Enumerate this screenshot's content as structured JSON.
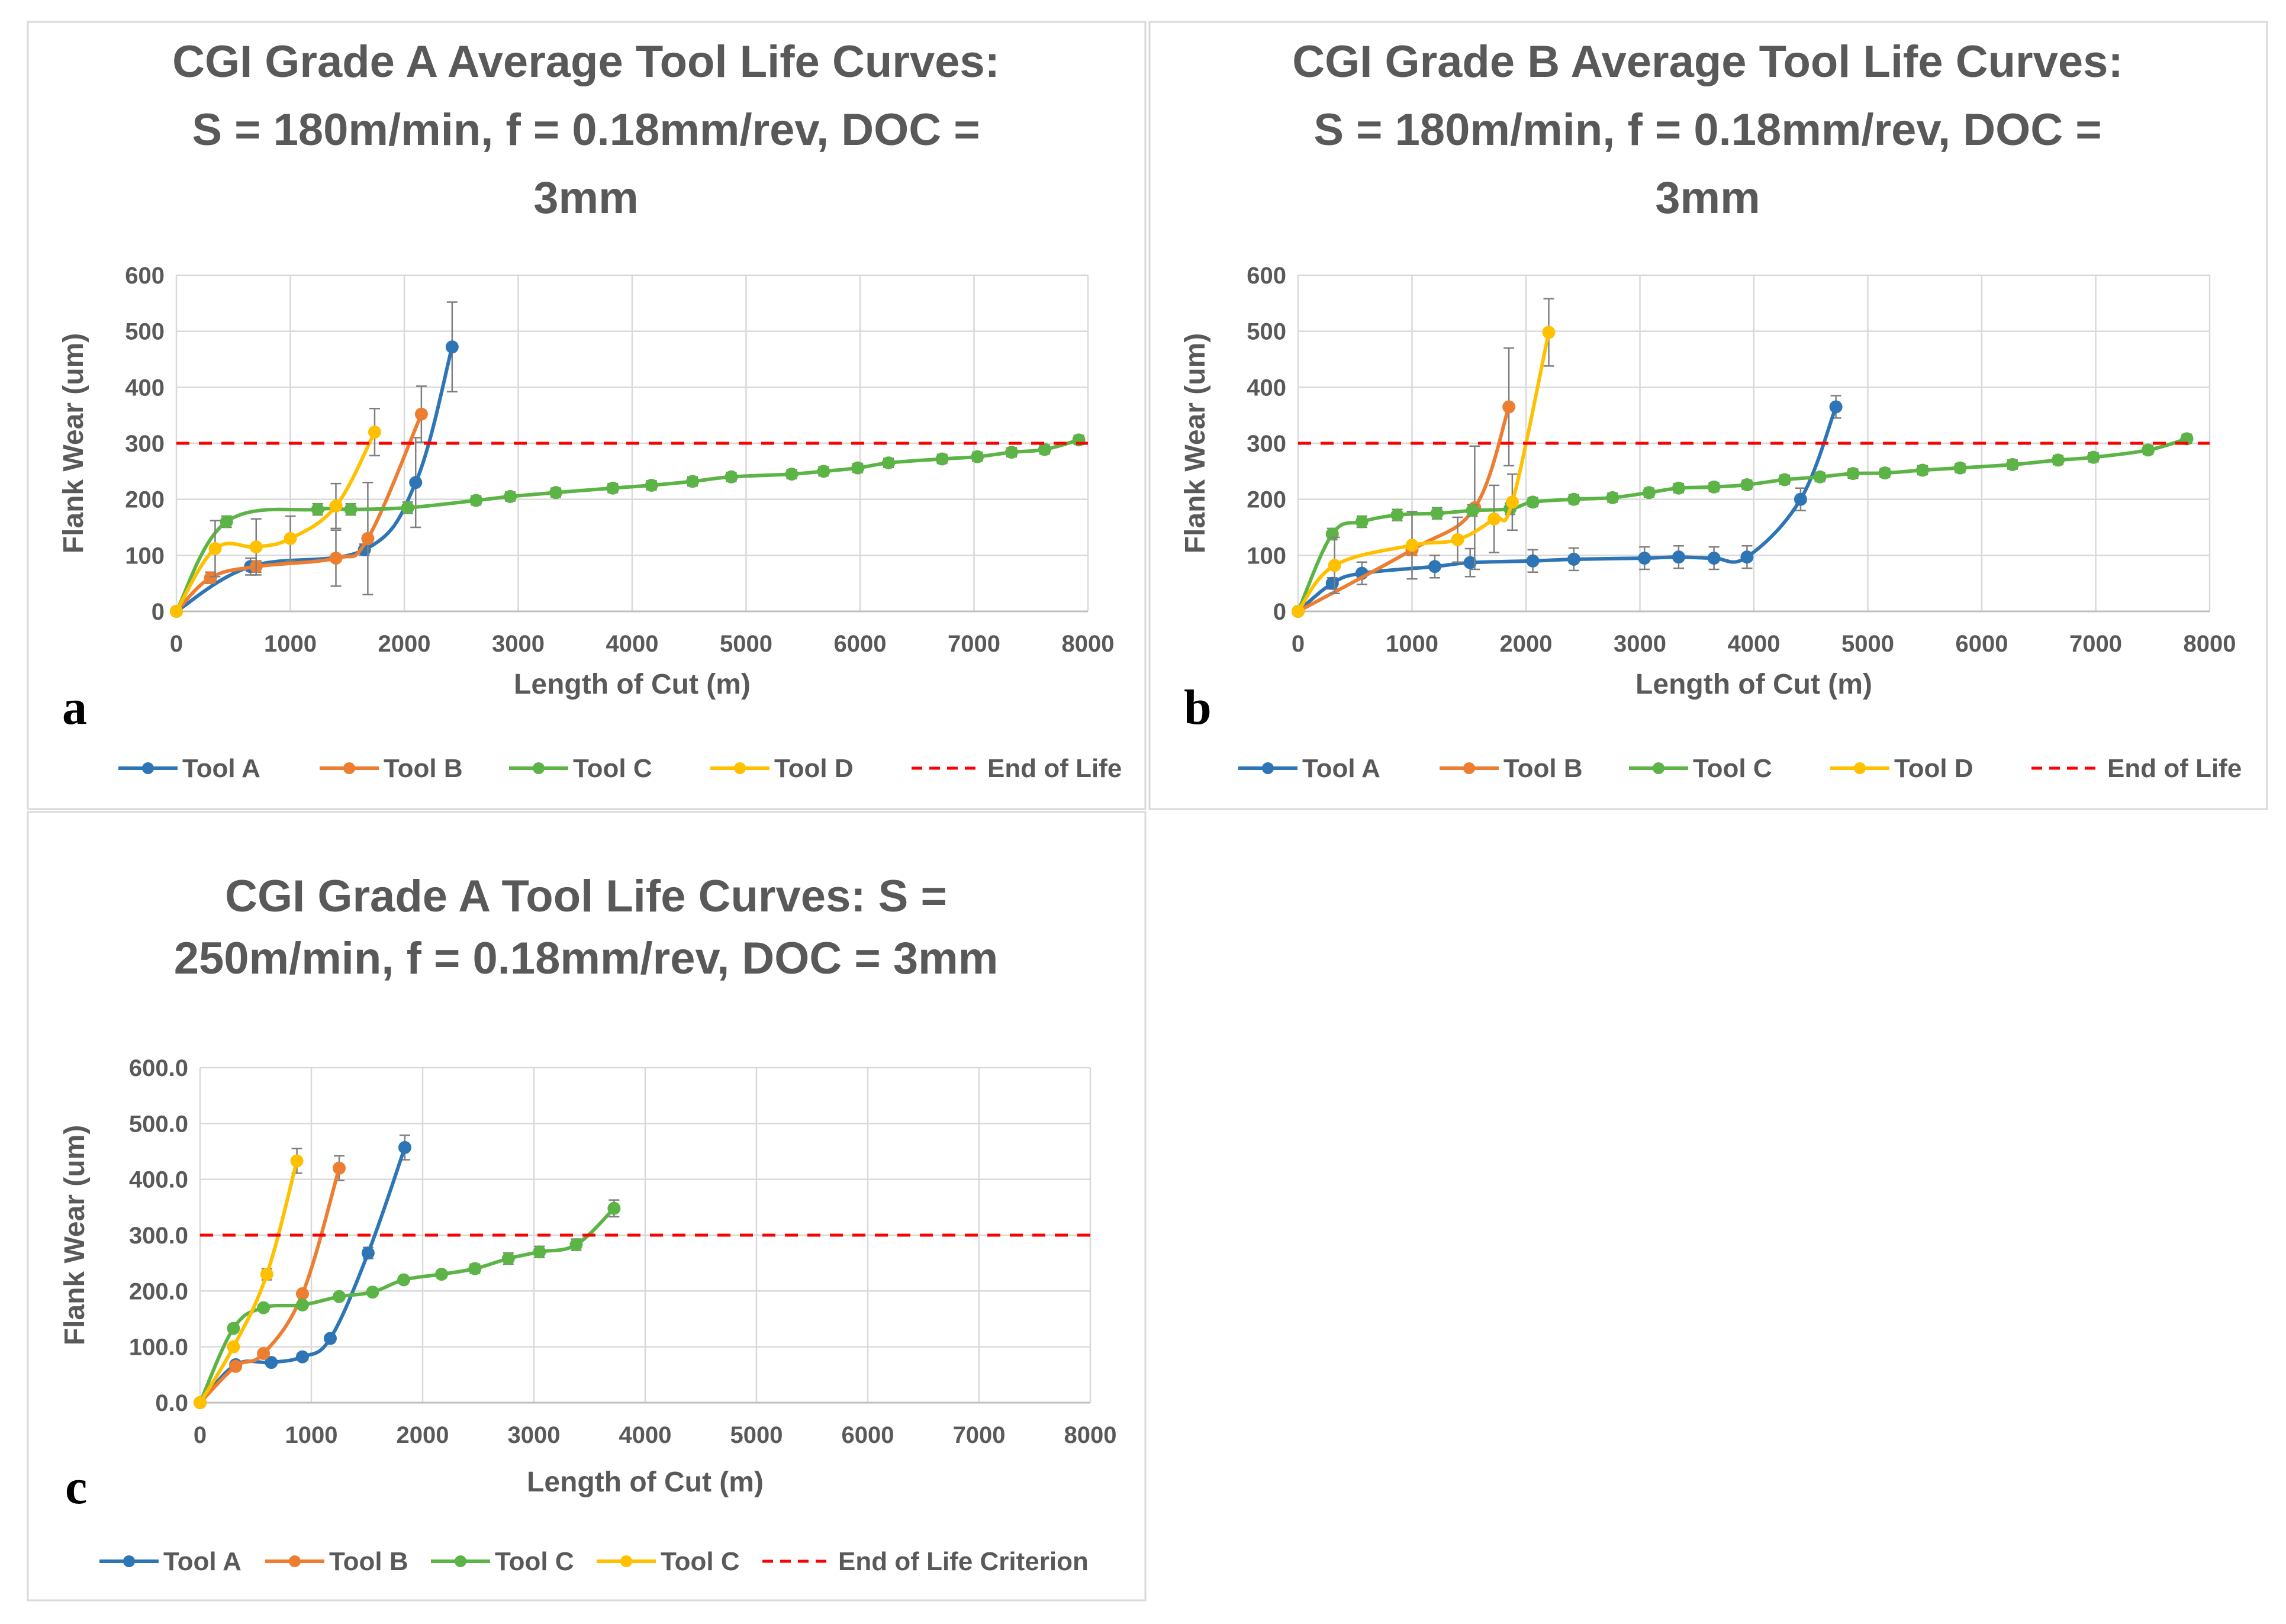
{
  "chart_data": [
    {
      "type": "line",
      "panel_label": "a",
      "title_lines": [
        "CGI Grade A Average Tool Life Curves:",
        "S = 180m/min, f = 0.18mm/rev, DOC =",
        "3mm"
      ],
      "xlabel": "Length of Cut (m)",
      "ylabel": "Flank Wear (um)",
      "xlim": [
        0,
        8000
      ],
      "ylim": [
        0,
        600
      ],
      "xticks": [
        "0",
        "1000",
        "2000",
        "3000",
        "4000",
        "5000",
        "6000",
        "7000",
        "8000"
      ],
      "yticks": [
        "0",
        "100",
        "200",
        "300",
        "400",
        "500",
        "600"
      ],
      "grid": true,
      "legend_position": "bottom",
      "series": [
        {
          "name": "Tool A",
          "color": "#2E75B6",
          "points": [
            [
              0,
              0
            ],
            [
              650,
              80
            ],
            [
              1650,
              110
            ],
            [
              2100,
              230
            ],
            [
              2420,
              472
            ]
          ],
          "errors": [
            0,
            15,
            10,
            80,
            80
          ]
        },
        {
          "name": "Tool B",
          "color": "#ED7D31",
          "points": [
            [
              0,
              0
            ],
            [
              300,
              60
            ],
            [
              700,
              80
            ],
            [
              1400,
              95
            ],
            [
              1680,
              130
            ],
            [
              2150,
              352
            ]
          ],
          "errors": [
            0,
            10,
            10,
            50,
            100,
            50
          ]
        },
        {
          "name": "Tool C",
          "color": "#5DB446",
          "points": [
            [
              0,
              0
            ],
            [
              440,
              160
            ],
            [
              1240,
              182
            ],
            [
              1530,
              182
            ],
            [
              2030,
              185
            ],
            [
              2630,
              198
            ],
            [
              2930,
              205
            ],
            [
              3330,
              212
            ],
            [
              3830,
              220
            ],
            [
              4170,
              225
            ],
            [
              4530,
              232
            ],
            [
              4870,
              240
            ],
            [
              5400,
              245
            ],
            [
              5680,
              250
            ],
            [
              5980,
              256
            ],
            [
              6250,
              265
            ],
            [
              6720,
              272
            ],
            [
              7030,
              276
            ],
            [
              7330,
              284
            ],
            [
              7620,
              289
            ],
            [
              7920,
              306
            ]
          ],
          "errors": [
            0,
            10,
            10,
            10,
            10,
            8,
            8,
            8,
            8,
            8,
            8,
            8,
            8,
            8,
            8,
            8,
            8,
            8,
            8,
            8,
            8
          ]
        },
        {
          "name": "Tool D",
          "color": "#FFC000",
          "points": [
            [
              0,
              0
            ],
            [
              340,
              112
            ],
            [
              700,
              115
            ],
            [
              1000,
              130
            ],
            [
              1400,
              188
            ],
            [
              1740,
              320
            ]
          ],
          "errors": [
            0,
            50,
            50,
            40,
            40,
            42
          ]
        },
        {
          "name": "End of Life",
          "color": "#FF0000",
          "dashed": true,
          "points": [
            [
              0,
              300
            ],
            [
              8000,
              300
            ]
          ]
        }
      ]
    },
    {
      "type": "line",
      "panel_label": "b",
      "title_lines": [
        "CGI Grade B Average Tool Life Curves:",
        "S = 180m/min, f = 0.18mm/rev, DOC =",
        "3mm"
      ],
      "xlabel": "Length of Cut (m)",
      "ylabel": "Flank Wear (um)",
      "xlim": [
        0,
        8000
      ],
      "ylim": [
        0,
        600
      ],
      "xticks": [
        "0",
        "1000",
        "2000",
        "3000",
        "4000",
        "5000",
        "6000",
        "7000",
        "8000"
      ],
      "yticks": [
        "0",
        "100",
        "200",
        "300",
        "400",
        "500",
        "600"
      ],
      "grid": true,
      "legend_position": "bottom",
      "series": [
        {
          "name": "Tool A",
          "color": "#2E75B6",
          "points": [
            [
              0,
              0
            ],
            [
              300,
              50
            ],
            [
              560,
              68
            ],
            [
              1200,
              80
            ],
            [
              1510,
              87
            ],
            [
              2060,
              90
            ],
            [
              2420,
              93
            ],
            [
              3040,
              95
            ],
            [
              3340,
              97
            ],
            [
              3650,
              95
            ],
            [
              3940,
              97
            ],
            [
              4410,
              200
            ],
            [
              4720,
              365
            ]
          ],
          "errors": [
            0,
            10,
            20,
            20,
            25,
            20,
            20,
            20,
            20,
            20,
            20,
            20,
            20
          ]
        },
        {
          "name": "Tool B",
          "color": "#ED7D31",
          "points": [
            [
              0,
              0
            ],
            [
              1000,
              110
            ],
            [
              1550,
              185
            ],
            [
              1850,
              365
            ]
          ],
          "errors": [
            0,
            10,
            110,
            105
          ]
        },
        {
          "name": "Tool C",
          "color": "#5DB446",
          "points": [
            [
              0,
              0
            ],
            [
              300,
              138
            ],
            [
              560,
              160
            ],
            [
              870,
              172
            ],
            [
              1220,
              175
            ],
            [
              1530,
              180
            ],
            [
              1860,
              183
            ],
            [
              2060,
              195
            ],
            [
              2420,
              200
            ],
            [
              2760,
              203
            ],
            [
              3080,
              212
            ],
            [
              3340,
              220
            ],
            [
              3650,
              222
            ],
            [
              3940,
              226
            ],
            [
              4270,
              235
            ],
            [
              4580,
              240
            ],
            [
              4870,
              246
            ],
            [
              5150,
              247
            ],
            [
              5480,
              252
            ],
            [
              5810,
              256
            ],
            [
              6270,
              262
            ],
            [
              6670,
              270
            ],
            [
              6980,
              275
            ],
            [
              7460,
              288
            ],
            [
              7800,
              308
            ]
          ],
          "errors": [
            0,
            10,
            10,
            10,
            10,
            10,
            10,
            8,
            8,
            8,
            8,
            8,
            8,
            8,
            8,
            8,
            8,
            8,
            8,
            8,
            8,
            8,
            8,
            8,
            8
          ]
        },
        {
          "name": "Tool D",
          "color": "#FFC000",
          "points": [
            [
              0,
              0
            ],
            [
              320,
              82
            ],
            [
              1000,
              118
            ],
            [
              1400,
              128
            ],
            [
              1720,
              165
            ],
            [
              1880,
              195
            ],
            [
              2200,
              498
            ]
          ],
          "errors": [
            0,
            50,
            60,
            40,
            60,
            50,
            60
          ]
        },
        {
          "name": "End of Life",
          "color": "#FF0000",
          "dashed": true,
          "points": [
            [
              0,
              300
            ],
            [
              8000,
              300
            ]
          ]
        }
      ]
    },
    {
      "type": "line",
      "panel_label": "c",
      "title_lines": [
        "CGI Grade A Tool Life Curves: S =",
        "250m/min, f = 0.18mm/rev, DOC = 3mm"
      ],
      "xlabel": "Length of Cut (m)",
      "ylabel": "Flank Wear (um)",
      "xlim": [
        0,
        8000
      ],
      "ylim": [
        0,
        600
      ],
      "xticks": [
        "0",
        "1000",
        "2000",
        "3000",
        "4000",
        "5000",
        "6000",
        "7000",
        "8000"
      ],
      "yticks": [
        "0.0",
        "100.0",
        "200.0",
        "300.0",
        "400.0",
        "500.0",
        "600.0"
      ],
      "grid": true,
      "legend_position": "bottom",
      "series": [
        {
          "name": "Tool A",
          "color": "#2E75B6",
          "points": [
            [
              0,
              0
            ],
            [
              320,
              68
            ],
            [
              640,
              72
            ],
            [
              920,
              82
            ],
            [
              1170,
              115
            ],
            [
              1510,
              268
            ],
            [
              1840,
              457
            ]
          ],
          "errors": [
            0,
            5,
            5,
            5,
            5,
            10,
            22
          ]
        },
        {
          "name": "Tool B",
          "color": "#ED7D31",
          "points": [
            [
              0,
              0
            ],
            [
              320,
              65
            ],
            [
              570,
              88
            ],
            [
              920,
              195
            ],
            [
              1250,
              420
            ]
          ],
          "errors": [
            0,
            5,
            5,
            5,
            22
          ]
        },
        {
          "name": "Tool C",
          "color": "#5DB446",
          "points": [
            [
              0,
              0
            ],
            [
              300,
              133
            ],
            [
              570,
              170
            ],
            [
              920,
              175
            ],
            [
              1250,
              190
            ],
            [
              1550,
              198
            ],
            [
              1830,
              220
            ],
            [
              2170,
              230
            ],
            [
              2470,
              240
            ],
            [
              2770,
              258
            ],
            [
              3050,
              270
            ],
            [
              3380,
              283
            ],
            [
              3720,
              348
            ]
          ],
          "errors": [
            0,
            5,
            5,
            5,
            5,
            5,
            5,
            5,
            8,
            10,
            10,
            10,
            15
          ]
        },
        {
          "name": "Tool C",
          "color": "#FFC000",
          "points": [
            [
              0,
              0
            ],
            [
              300,
              100
            ],
            [
              600,
              230
            ],
            [
              870,
              433
            ]
          ],
          "errors": [
            0,
            5,
            10,
            22
          ]
        },
        {
          "name": "End of Life Criterion",
          "color": "#FF0000",
          "dashed": true,
          "points": [
            [
              0,
              300
            ],
            [
              8000,
              300
            ]
          ]
        }
      ]
    }
  ]
}
